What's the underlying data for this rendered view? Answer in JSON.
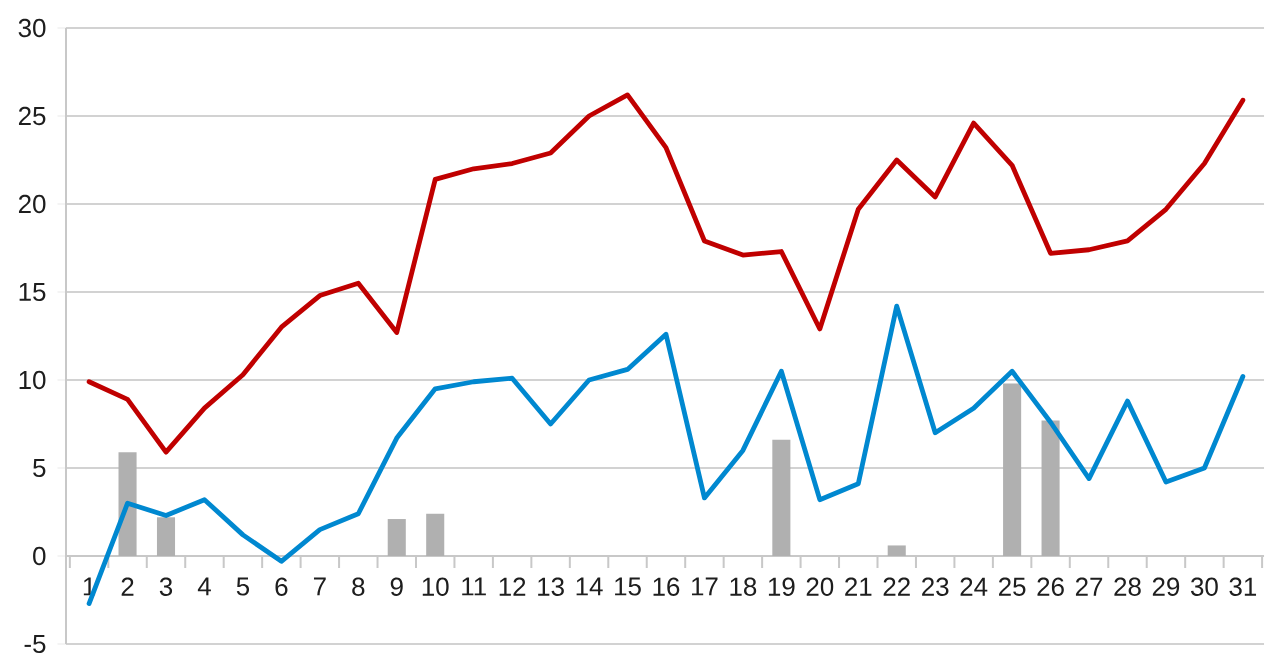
{
  "chart_data": {
    "type": "line",
    "categories": [
      "1",
      "2",
      "3",
      "4",
      "5",
      "6",
      "7",
      "8",
      "9",
      "10",
      "11",
      "12",
      "13",
      "14",
      "15",
      "16",
      "17",
      "18",
      "19",
      "20",
      "21",
      "22",
      "23",
      "24",
      "25",
      "26",
      "27",
      "28",
      "29",
      "30",
      "31"
    ],
    "series": [
      {
        "type": "bar",
        "color": "#b0b0b0",
        "values": [
          null,
          5.9,
          2.2,
          null,
          null,
          null,
          null,
          null,
          2.1,
          2.4,
          null,
          null,
          null,
          null,
          null,
          null,
          null,
          null,
          6.6,
          null,
          null,
          0.6,
          null,
          null,
          9.8,
          7.7,
          null,
          null,
          null,
          null,
          null
        ]
      },
      {
        "color": "#c00000",
        "values": [
          9.9,
          8.9,
          5.9,
          8.4,
          10.3,
          13.0,
          14.8,
          15.5,
          12.7,
          21.4,
          22.0,
          22.3,
          22.9,
          25.0,
          26.2,
          23.2,
          17.9,
          17.1,
          17.3,
          12.9,
          19.7,
          22.5,
          20.4,
          24.6,
          22.2,
          17.2,
          17.4,
          17.9,
          19.7,
          22.3,
          25.9
        ]
      },
      {
        "color": "#0088d0",
        "values": [
          -2.7,
          3.0,
          2.3,
          3.2,
          1.2,
          -0.3,
          1.5,
          2.4,
          6.7,
          9.5,
          9.9,
          10.1,
          7.5,
          10.0,
          10.6,
          12.6,
          3.3,
          6.0,
          10.5,
          3.2,
          4.1,
          14.2,
          7.0,
          8.4,
          10.5,
          7.6,
          4.4,
          8.8,
          4.2,
          5.0,
          10.2
        ]
      }
    ],
    "ylim": [
      -5,
      30
    ],
    "yticks": [
      -5,
      0,
      5,
      10,
      15,
      20,
      25,
      30
    ],
    "grid": "y",
    "line_style": "solid",
    "marker": "none"
  }
}
